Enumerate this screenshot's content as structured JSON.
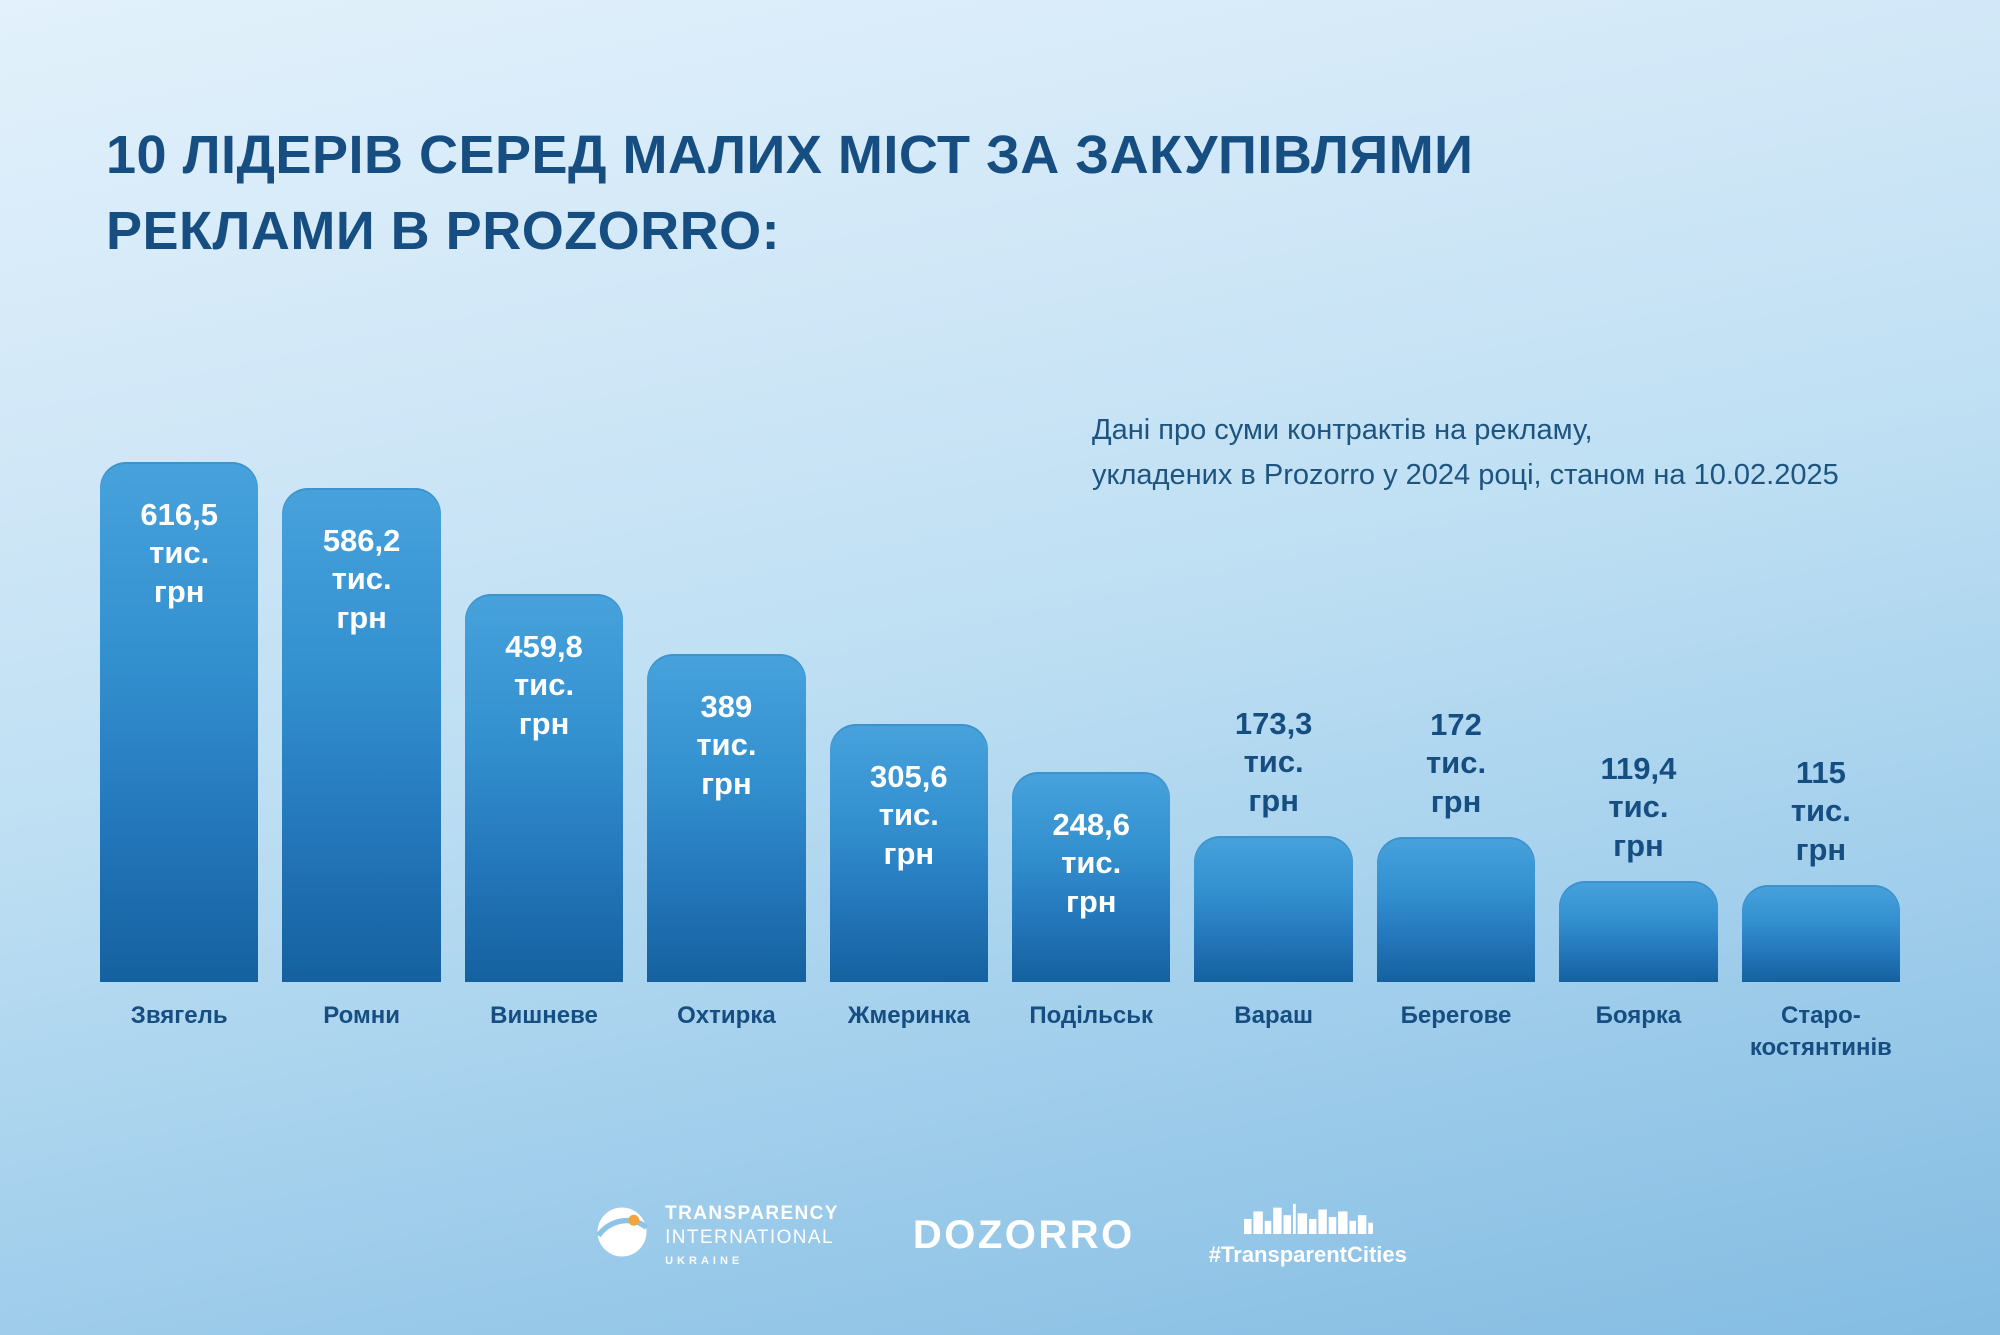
{
  "header": {
    "title_line1": "10 ЛІДЕРІВ СЕРЕД МАЛИХ МІСТ ЗА ЗАКУПІВЛЯМИ",
    "title_line2": "РЕКЛАМИ В PROZORRO:"
  },
  "note": {
    "line1": "Дані про суми контрактів на рекламу,",
    "line2": "укладених в Prozorro у 2024 році, станом на 10.02.2025"
  },
  "chart_data": {
    "type": "bar",
    "title": "10 ЛІДЕРІВ СЕРЕД МАЛИХ МІСТ ЗА ЗАКУПІВЛЯМИ РЕКЛАМИ В PROZORRO:",
    "subtitle": "Дані про суми контрактів на рекламу, укладених в Prozorro у 2024 році, станом на 10.02.2025",
    "unit": "тис. грн",
    "categories": [
      "Звягель",
      "Ромни",
      "Вишневе",
      "Охтирка",
      "Жмеринка",
      "Подільськ",
      "Вараш",
      "Берегове",
      "Боярка",
      "Старо-костянтинів"
    ],
    "values": [
      616.5,
      586.2,
      459.8,
      389,
      305.6,
      248.6,
      173.3,
      172,
      119.4,
      115
    ],
    "ylim": [
      0,
      650
    ],
    "grid": false,
    "legend": false,
    "bars": [
      {
        "city": "Звягель",
        "value": 616.5,
        "value_label": "616,5",
        "unit_line1": "тис.",
        "unit_line2": "грн",
        "label_position": "inside"
      },
      {
        "city": "Ромни",
        "value": 586.2,
        "value_label": "586,2",
        "unit_line1": "тис.",
        "unit_line2": "грн",
        "label_position": "inside"
      },
      {
        "city": "Вишневе",
        "value": 459.8,
        "value_label": "459,8",
        "unit_line1": "тис.",
        "unit_line2": "грн",
        "label_position": "inside"
      },
      {
        "city": "Охтирка",
        "value": 389,
        "value_label": "389",
        "unit_line1": "тис.",
        "unit_line2": "грн",
        "label_position": "inside"
      },
      {
        "city": "Жмеринка",
        "value": 305.6,
        "value_label": "305,6",
        "unit_line1": "тис.",
        "unit_line2": "грн",
        "label_position": "inside"
      },
      {
        "city": "Подільськ",
        "value": 248.6,
        "value_label": "248,6",
        "unit_line1": "тис.",
        "unit_line2": "грн",
        "label_position": "inside"
      },
      {
        "city": "Вараш",
        "value": 173.3,
        "value_label": "173,3",
        "unit_line1": "тис.",
        "unit_line2": "грн",
        "label_position": "outside"
      },
      {
        "city": "Берегове",
        "value": 172,
        "value_label": "172",
        "unit_line1": "тис.",
        "unit_line2": "грн",
        "label_position": "outside"
      },
      {
        "city": "Боярка",
        "value": 119.4,
        "value_label": "119,4",
        "unit_line1": "тис.",
        "unit_line2": "грн",
        "label_position": "outside"
      },
      {
        "city": "Старо-костянтинів",
        "value": 115,
        "value_label": "115",
        "unit_line1": "тис.",
        "unit_line2": "грн",
        "label_position": "outside"
      }
    ]
  },
  "footer": {
    "transparency_line1": "TRANSPARENCY",
    "transparency_line2": "INTERNATIONAL",
    "transparency_line3": "UKRAINE",
    "dozorro": "DOZORRO",
    "transparent_cities": "#TransparentCities"
  },
  "colors": {
    "background_top": "#e2f1fb",
    "background_bottom": "#84bce2",
    "bar_gradient_top": "#47a2dc",
    "bar_gradient_bottom": "#15619f",
    "title_text": "#164e82",
    "note_text": "#1d5480",
    "value_label_inside": "#ffffff",
    "value_label_outside": "#164e82",
    "footer_text": "#ffffff"
  }
}
